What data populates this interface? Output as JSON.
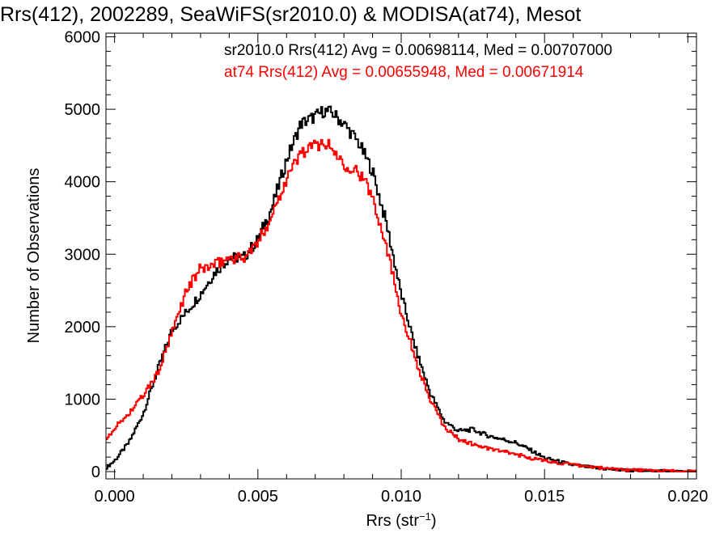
{
  "chart_data": {
    "type": "line",
    "title": "Rrs(412), 2002289, SeaWiFS(sr2010.0) & MODISA(at74), Mesot",
    "xlabel": "Rrs (str",
    "xlabel_sup": "−1",
    "xlabel_close": ")",
    "ylabel": "Number of Observations",
    "xlim": [
      -0.0003,
      0.0203
    ],
    "ylim": [
      -100,
      6050
    ],
    "xticks": [
      0.0,
      0.005,
      0.01,
      0.015,
      0.02
    ],
    "xtick_labels": [
      "0.000",
      "0.005",
      "0.010",
      "0.015",
      "0.020"
    ],
    "yticks": [
      0,
      1000,
      2000,
      3000,
      4000,
      5000,
      6000
    ],
    "ytick_labels": [
      "0",
      "1000",
      "2000",
      "3000",
      "4000",
      "5000",
      "6000"
    ],
    "step": "histogram",
    "legend_position": "top-right",
    "annotations": [
      {
        "text": "sr2010.0 Rrs(412) Avg = 0.00698114, Med = 0.00707000",
        "color": "#000000"
      },
      {
        "text": "at74 Rrs(412) Avg = 0.00655948, Med = 0.00671914",
        "color": "#ff0000"
      }
    ],
    "series": [
      {
        "color": "#000000",
        "x": [
          -0.0003,
          0.0,
          0.0005,
          0.001,
          0.0015,
          0.002,
          0.0025,
          0.003,
          0.0035,
          0.004,
          0.0045,
          0.005,
          0.0055,
          0.006,
          0.0065,
          0.007,
          0.0073,
          0.0076,
          0.008,
          0.0085,
          0.009,
          0.0095,
          0.01,
          0.0105,
          0.011,
          0.0115,
          0.012,
          0.0125,
          0.013,
          0.0135,
          0.014,
          0.0145,
          0.015,
          0.016,
          0.017,
          0.018,
          0.019,
          0.0203
        ],
        "y": [
          50,
          150,
          400,
          800,
          1400,
          1950,
          2200,
          2450,
          2750,
          2950,
          2950,
          3200,
          3650,
          4300,
          4800,
          4900,
          4980,
          4950,
          4800,
          4550,
          4150,
          3400,
          2450,
          1700,
          1100,
          700,
          560,
          580,
          500,
          450,
          400,
          300,
          190,
          90,
          40,
          15,
          5,
          0
        ]
      },
      {
        "color": "#ff0000",
        "x": [
          -0.0003,
          0.0,
          0.0005,
          0.001,
          0.0015,
          0.002,
          0.0025,
          0.003,
          0.0035,
          0.004,
          0.0045,
          0.005,
          0.0055,
          0.006,
          0.0065,
          0.007,
          0.0073,
          0.0076,
          0.008,
          0.0085,
          0.009,
          0.0095,
          0.01,
          0.0105,
          0.011,
          0.0115,
          0.012,
          0.0125,
          0.013,
          0.0135,
          0.014,
          0.0145,
          0.015,
          0.016,
          0.017,
          0.018,
          0.019,
          0.0203
        ],
        "y": [
          450,
          600,
          800,
          1050,
          1350,
          1900,
          2500,
          2800,
          2850,
          2950,
          2950,
          3150,
          3550,
          4050,
          4400,
          4500,
          4550,
          4450,
          4250,
          4150,
          3800,
          3100,
          2200,
          1550,
          1000,
          620,
          450,
          380,
          320,
          280,
          240,
          190,
          150,
          90,
          50,
          25,
          10,
          0
        ]
      }
    ]
  }
}
